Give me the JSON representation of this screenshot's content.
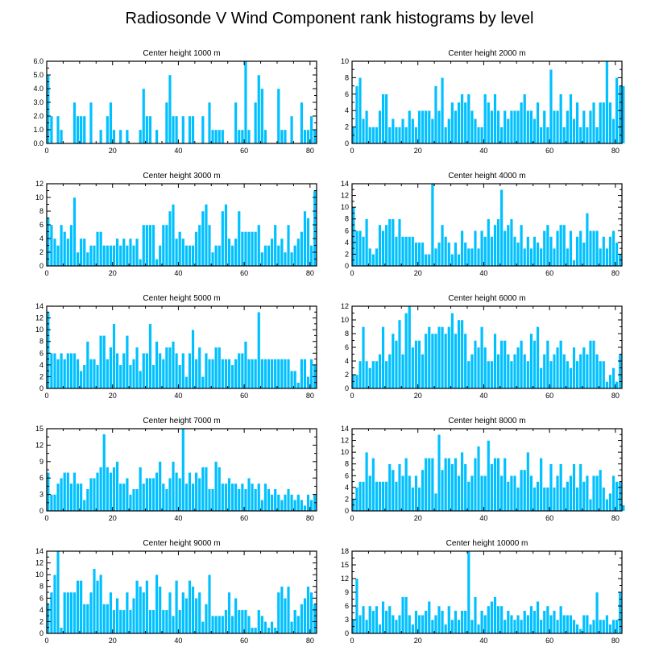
{
  "title": "Radiosonde V Wind Component rank histograms by level",
  "colors": {
    "bar": "#00C0FF",
    "bar_edge": "#ffffff",
    "frame": "#000000"
  },
  "chart_data": [
    {
      "type": "bar",
      "title": "Center height 1000 m",
      "x_ticks": [
        "0",
        "20",
        "40",
        "60",
        "80"
      ],
      "y_ticks": [
        "0.0",
        "1.0",
        "2.0",
        "3.0",
        "4.0",
        "5.0",
        "6.0"
      ],
      "ylim": [
        0,
        6
      ],
      "values": [
        5,
        2,
        0,
        2,
        1,
        0,
        0,
        0,
        3,
        2,
        2,
        2,
        0,
        3,
        0,
        0,
        1,
        0,
        2,
        3,
        1,
        0,
        1,
        0,
        1,
        0,
        0,
        0,
        1,
        4,
        2,
        2,
        0,
        1,
        0,
        0,
        3,
        5,
        2,
        2,
        0,
        2,
        0,
        2,
        2,
        0,
        0,
        2,
        0,
        3,
        1,
        1,
        1,
        1,
        0,
        0,
        0,
        3,
        1,
        1,
        6,
        1,
        0,
        3,
        5,
        4,
        1,
        0,
        0,
        0,
        4,
        1,
        1,
        0,
        2,
        0,
        0,
        3,
        1,
        1,
        2,
        1
      ]
    },
    {
      "type": "bar",
      "title": "Center height 2000 m",
      "x_ticks": [
        "0",
        "20",
        "40",
        "60",
        "80"
      ],
      "y_ticks": [
        "0",
        "2",
        "4",
        "6",
        "8",
        "10"
      ],
      "ylim": [
        0,
        10
      ],
      "values": [
        2,
        7,
        8,
        3,
        4,
        2,
        2,
        2,
        4,
        6,
        6,
        2,
        3,
        2,
        2,
        3,
        2,
        4,
        3,
        2,
        4,
        4,
        4,
        4,
        3,
        7,
        4,
        8,
        2,
        3,
        5,
        4,
        5,
        6,
        5,
        6,
        4,
        3,
        2,
        2,
        6,
        5,
        4,
        6,
        4,
        2,
        4,
        3,
        4,
        4,
        4,
        5,
        6,
        4,
        4,
        3,
        5,
        2,
        4,
        2,
        9,
        4,
        4,
        6,
        2,
        4,
        6,
        3,
        5,
        2,
        4,
        2,
        4,
        5,
        2,
        5,
        5,
        10,
        5,
        3,
        8,
        7,
        7
      ]
    },
    {
      "type": "bar",
      "title": "Center height 3000 m",
      "x_ticks": [
        "0",
        "20",
        "40",
        "60",
        "80"
      ],
      "y_ticks": [
        "0",
        "2",
        "4",
        "6",
        "8",
        "10",
        "12"
      ],
      "ylim": [
        0,
        12
      ],
      "values": [
        7,
        6,
        4,
        3,
        6,
        5,
        4,
        6,
        10,
        2,
        4,
        4,
        2,
        3,
        3,
        5,
        5,
        3,
        3,
        3,
        3,
        4,
        3,
        4,
        3,
        4,
        3,
        4,
        1,
        6,
        6,
        6,
        6,
        1,
        3,
        6,
        6,
        8,
        9,
        4,
        5,
        4,
        3,
        3,
        3,
        5,
        6,
        8,
        9,
        6,
        2,
        3,
        3,
        8,
        9,
        4,
        3,
        4,
        8,
        5,
        5,
        5,
        5,
        5,
        6,
        2,
        3,
        3,
        4,
        6,
        3,
        4,
        2,
        6,
        2,
        3,
        4,
        5,
        8,
        7,
        3,
        11
      ]
    },
    {
      "type": "bar",
      "title": "Center height 4000 m",
      "x_ticks": [
        "0",
        "20",
        "40",
        "60",
        "80"
      ],
      "y_ticks": [
        "0",
        "2",
        "4",
        "6",
        "8",
        "10",
        "12",
        "14"
      ],
      "ylim": [
        0,
        14
      ],
      "values": [
        10,
        6,
        6,
        5,
        8,
        3,
        2,
        3,
        7,
        6,
        7,
        8,
        8,
        5,
        8,
        5,
        5,
        5,
        5,
        4,
        4,
        4,
        2,
        2,
        14,
        3,
        4,
        7,
        5,
        4,
        2,
        4,
        2,
        6,
        4,
        3,
        3,
        6,
        3,
        6,
        5,
        8,
        5,
        7,
        8,
        13,
        6,
        7,
        8,
        5,
        4,
        7,
        3,
        5,
        3,
        5,
        4,
        3,
        6,
        7,
        5,
        3,
        6,
        7,
        7,
        3,
        6,
        1,
        5,
        6,
        4,
        9,
        6,
        6,
        6,
        3,
        5,
        3,
        5,
        6,
        4,
        2
      ]
    },
    {
      "type": "bar",
      "title": "Center height 5000 m",
      "x_ticks": [
        "0",
        "20",
        "40",
        "60",
        "80"
      ],
      "y_ticks": [
        "0",
        "2",
        "4",
        "6",
        "8",
        "10",
        "12",
        "14"
      ],
      "ylim": [
        0,
        14
      ],
      "values": [
        13,
        6,
        6,
        5,
        6,
        5,
        6,
        6,
        6,
        5,
        3,
        4,
        8,
        5,
        5,
        4,
        9,
        9,
        5,
        7,
        11,
        6,
        4,
        6,
        9,
        4,
        5,
        7,
        3,
        6,
        6,
        11,
        4,
        8,
        6,
        5,
        7,
        7,
        8,
        6,
        4,
        6,
        2,
        6,
        10,
        5,
        7,
        2,
        6,
        5,
        5,
        7,
        7,
        5,
        5,
        5,
        4,
        5,
        6,
        6,
        8,
        5,
        5,
        5,
        13,
        5,
        5,
        5,
        5,
        5,
        5,
        5,
        5,
        5,
        3,
        3,
        1,
        5,
        5,
        2,
        5,
        4
      ]
    },
    {
      "type": "bar",
      "title": "Center height 6000 m",
      "x_ticks": [
        "0",
        "20",
        "40",
        "60",
        "80"
      ],
      "y_ticks": [
        "0",
        "2",
        "4",
        "6",
        "8",
        "10",
        "12"
      ],
      "ylim": [
        0,
        12
      ],
      "values": [
        2,
        2,
        4,
        9,
        4,
        3,
        4,
        4,
        5,
        9,
        4,
        5,
        8,
        7,
        10,
        5,
        11,
        12,
        6,
        7,
        7,
        5,
        8,
        9,
        8,
        8,
        9,
        9,
        8,
        9,
        11,
        8,
        10,
        10,
        8,
        4,
        5,
        7,
        6,
        9,
        6,
        4,
        4,
        8,
        5,
        7,
        7,
        5,
        4,
        5,
        6,
        7,
        5,
        4,
        8,
        7,
        9,
        3,
        5,
        7,
        4,
        5,
        6,
        7,
        5,
        4,
        3,
        6,
        4,
        5,
        6,
        5,
        7,
        7,
        5,
        4,
        4,
        1,
        2,
        3,
        1,
        5
      ]
    },
    {
      "type": "bar",
      "title": "Center height 7000 m",
      "x_ticks": [
        "0",
        "20",
        "40",
        "60",
        "80"
      ],
      "y_ticks": [
        "0",
        "3",
        "6",
        "9",
        "12",
        "15"
      ],
      "ylim": [
        0,
        15
      ],
      "values": [
        7,
        3,
        3,
        5,
        6,
        7,
        7,
        5,
        7,
        5,
        5,
        2,
        4,
        6,
        6,
        7,
        8,
        14,
        8,
        7,
        8,
        9,
        5,
        5,
        6,
        3,
        4,
        4,
        8,
        5,
        6,
        6,
        6,
        7,
        9,
        5,
        4,
        6,
        9,
        7,
        6,
        15,
        5,
        7,
        5,
        7,
        6,
        8,
        8,
        4,
        4,
        9,
        8,
        5,
        5,
        6,
        5,
        5,
        4,
        5,
        4,
        6,
        5,
        4,
        5,
        2,
        5,
        4,
        3,
        4,
        3,
        2,
        3,
        4,
        3,
        2,
        3,
        2,
        1,
        3,
        2,
        3
      ]
    },
    {
      "type": "bar",
      "title": "Center height 8000 m",
      "x_ticks": [
        "0",
        "20",
        "40",
        "60",
        "80"
      ],
      "y_ticks": [
        "0",
        "2",
        "4",
        "6",
        "8",
        "10",
        "12",
        "14"
      ],
      "ylim": [
        0,
        14
      ],
      "values": [
        2,
        4,
        5,
        5,
        10,
        6,
        9,
        5,
        5,
        5,
        5,
        8,
        7,
        5,
        8,
        6,
        9,
        6,
        4,
        6,
        4,
        7,
        9,
        9,
        9,
        3,
        13,
        7,
        9,
        9,
        8,
        9,
        6,
        10,
        8,
        5,
        6,
        9,
        11,
        6,
        6,
        12,
        8,
        9,
        9,
        6,
        9,
        5,
        6,
        6,
        4,
        7,
        7,
        10,
        6,
        4,
        5,
        9,
        4,
        4,
        8,
        4,
        6,
        8,
        4,
        5,
        6,
        8,
        4,
        8,
        5,
        6,
        2,
        6,
        6,
        7,
        4,
        2,
        3,
        6,
        5,
        5,
        1
      ]
    },
    {
      "type": "bar",
      "title": "Center height 9000 m",
      "x_ticks": [
        "0",
        "20",
        "40",
        "60",
        "80"
      ],
      "y_ticks": [
        "0",
        "2",
        "4",
        "6",
        "8",
        "10",
        "12",
        "14"
      ],
      "ylim": [
        0,
        14
      ],
      "values": [
        5,
        7,
        10,
        14,
        1,
        7,
        7,
        7,
        7,
        9,
        9,
        5,
        5,
        7,
        11,
        9,
        10,
        5,
        5,
        7,
        4,
        6,
        4,
        4,
        7,
        4,
        6,
        9,
        8,
        7,
        9,
        4,
        4,
        10,
        8,
        4,
        4,
        7,
        3,
        9,
        4,
        7,
        6,
        9,
        8,
        6,
        7,
        2,
        5,
        10,
        3,
        3,
        3,
        3,
        4,
        7,
        3,
        6,
        4,
        4,
        4,
        3,
        1,
        1,
        4,
        3,
        2,
        1,
        2,
        1,
        7,
        8,
        6,
        8,
        2,
        4,
        3,
        5,
        6,
        8,
        7,
        5
      ]
    },
    {
      "type": "bar",
      "title": "Center height 10000 m",
      "x_ticks": [
        "0",
        "20",
        "40",
        "60",
        "80"
      ],
      "y_ticks": [
        "0",
        "3",
        "6",
        "9",
        "12",
        "15",
        "18"
      ],
      "ylim": [
        0,
        18
      ],
      "values": [
        3,
        12,
        4,
        6,
        3,
        6,
        5,
        6,
        2,
        7,
        5,
        6,
        4,
        3,
        4,
        8,
        8,
        4,
        2,
        5,
        4,
        4,
        5,
        7,
        3,
        4,
        6,
        5,
        2,
        6,
        3,
        5,
        3,
        5,
        5,
        18,
        3,
        8,
        2,
        5,
        4,
        6,
        7,
        8,
        6,
        6,
        3,
        5,
        4,
        3,
        4,
        3,
        5,
        4,
        6,
        5,
        7,
        3,
        5,
        6,
        4,
        5,
        3,
        6,
        4,
        4,
        4,
        3,
        2,
        1,
        4,
        4,
        2,
        3,
        9,
        3,
        3,
        4,
        2,
        3,
        3,
        9
      ]
    }
  ]
}
